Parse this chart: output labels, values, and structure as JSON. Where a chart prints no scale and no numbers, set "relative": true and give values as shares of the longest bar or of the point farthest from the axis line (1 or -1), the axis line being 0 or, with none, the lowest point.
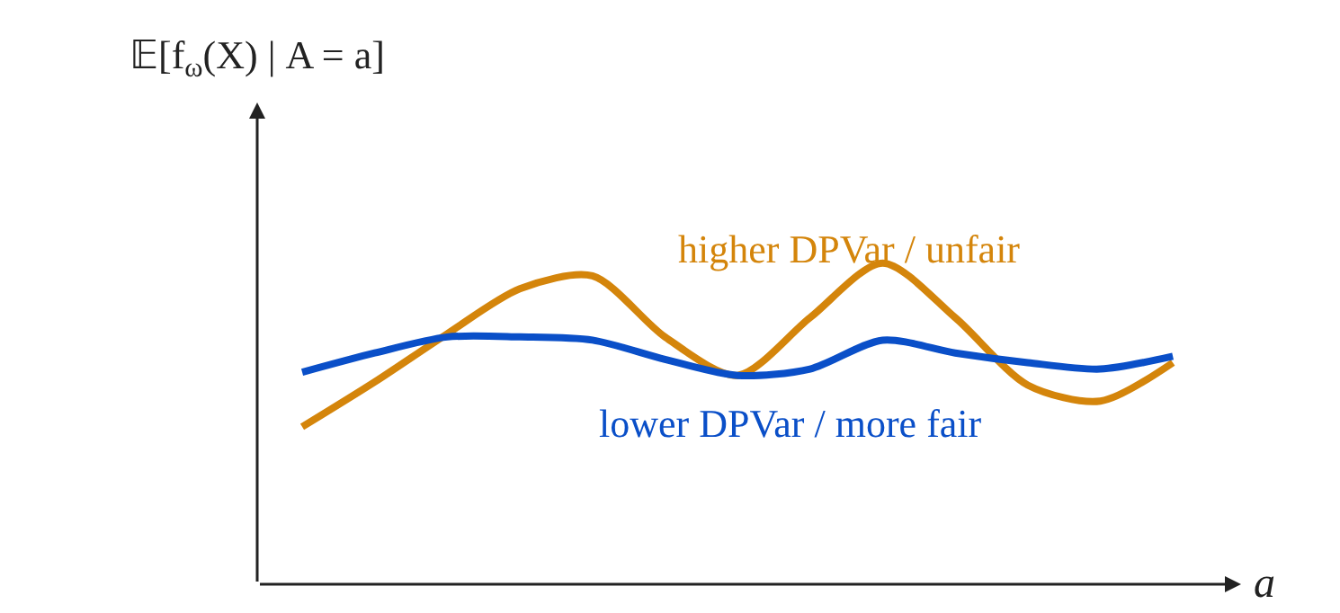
{
  "chart_data": {
    "type": "line",
    "relative": true,
    "ylabel": "𝔼[f$_{ω}$(X) | A = a]",
    "xlabel": "a",
    "categories": [
      null,
      null,
      null,
      null,
      null,
      null,
      null,
      null,
      null,
      null,
      null,
      null,
      null
    ],
    "series": [
      {
        "name": "higher DPVar / unfair",
        "color": "#d4850b",
        "values": [
          0.49,
          0.63,
          0.78,
          0.92,
          0.96,
          0.77,
          0.65,
          0.83,
          1.0,
          0.83,
          0.62,
          0.57,
          0.69
        ]
      },
      {
        "name": "lower DPVar / more fair",
        "color": "#0a4fc8",
        "values": [
          0.66,
          0.72,
          0.77,
          0.77,
          0.76,
          0.7,
          0.65,
          0.67,
          0.76,
          0.72,
          0.69,
          0.67,
          0.71
        ]
      }
    ],
    "legend": false,
    "marker": "none",
    "line_style": "solid"
  }
}
